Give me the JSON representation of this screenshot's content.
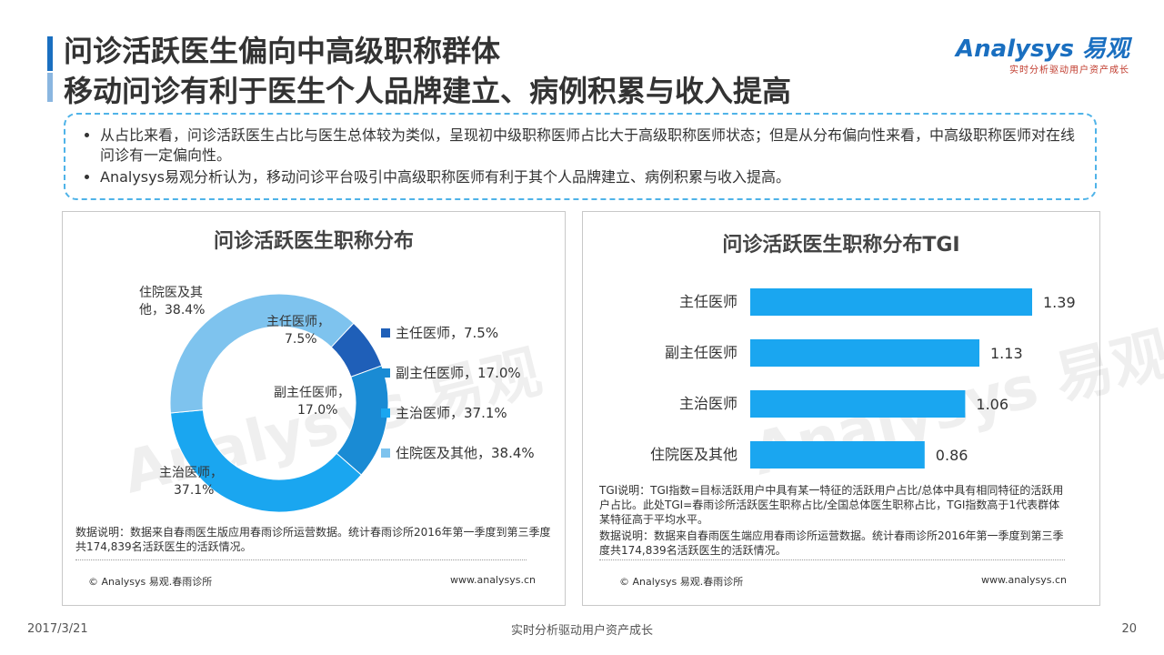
{
  "header": {
    "title_line1": "问诊活跃医生偏向中高级职称群体",
    "title_line2": "移动问诊有利于医生个人品牌建立、病例积累与收入提高"
  },
  "logo": {
    "name": "Analysys 易观",
    "tagline": "实时分析驱动用户资产成长"
  },
  "summary": {
    "bullets": [
      "从占比来看，问诊活跃医生占比与医生总体较为类似，呈现初中级职称医师占比大于高级职称医师状态；但是从分布偏向性来看，中高级职称医师对在线问诊有一定偏向性。",
      "Analysys易观分析认为，移动问诊平台吸引中高级职称医师有利于其个人品牌建立、病例积累与收入提高。"
    ]
  },
  "left_panel": {
    "note": "数据说明：数据来自春雨医生版应用春雨诊所运营数据。统计春雨诊所2016年第一季度到第三季度共174,839名活跃医生的活跃情况。",
    "copyright": "© Analysys 易观.春雨诊所",
    "website": "www.analysys.cn"
  },
  "right_panel": {
    "note_tgi": "TGI说明：TGI指数=目标活跃用户中具有某一特征的活跃用户占比/总体中具有相同特征的活跃用户占比。此处TGI=春雨诊所活跃医生职称占比/全国总体医生职称占比，TGI指数高于1代表群体某特征高于平均水平。",
    "note_data": "数据说明：数据来自春雨医生端应用春雨诊所运营数据。统计春雨诊所2016年第一季度到第三季度共174,839名活跃医生的活跃情况。",
    "copyright": "© Analysys 易观.春雨诊所",
    "website": "www.analysys.cn"
  },
  "watermark": {
    "brand": "Analysys 易观",
    "tagline": "实时分析驱动用户资产成长"
  },
  "footer": {
    "date": "2017/3/21",
    "center": "实时分析驱动用户资产成长",
    "page": "20"
  },
  "chart_data": [
    {
      "type": "pie",
      "title": "问诊活跃医生职称分布",
      "categories": [
        "主任医师",
        "副主任医师",
        "主治医师",
        "住院医及其他"
      ],
      "values": [
        7.5,
        17.0,
        37.1,
        38.4
      ],
      "unit": "%",
      "colors": [
        "#1f5fb8",
        "#1a8bd4",
        "#1aa6f0",
        "#7ec3ee"
      ],
      "legend_labels": [
        "主任医师，7.5%",
        "副主任医师，17.0%",
        "主治医师，37.1%",
        "住院医及其他，38.4%"
      ],
      "data_labels": [
        [
          "主任医师，",
          "7.5%"
        ],
        [
          "副主任医师，",
          "17.0%"
        ],
        [
          "主治医师，",
          "37.1%"
        ],
        [
          "住院医及其",
          "他，38.4%"
        ]
      ],
      "legend_position": "right"
    },
    {
      "type": "bar",
      "orientation": "horizontal",
      "title": "问诊活跃医生职称分布TGI",
      "categories": [
        "主任医师",
        "副主任医师",
        "主治医师",
        "住院医及其他"
      ],
      "values": [
        1.39,
        1.13,
        1.06,
        0.86
      ],
      "value_labels": [
        "1.39",
        "1.13",
        "1.06",
        "0.86"
      ],
      "color": "#1aa6f0",
      "xlim": [
        0,
        1.5
      ]
    }
  ]
}
